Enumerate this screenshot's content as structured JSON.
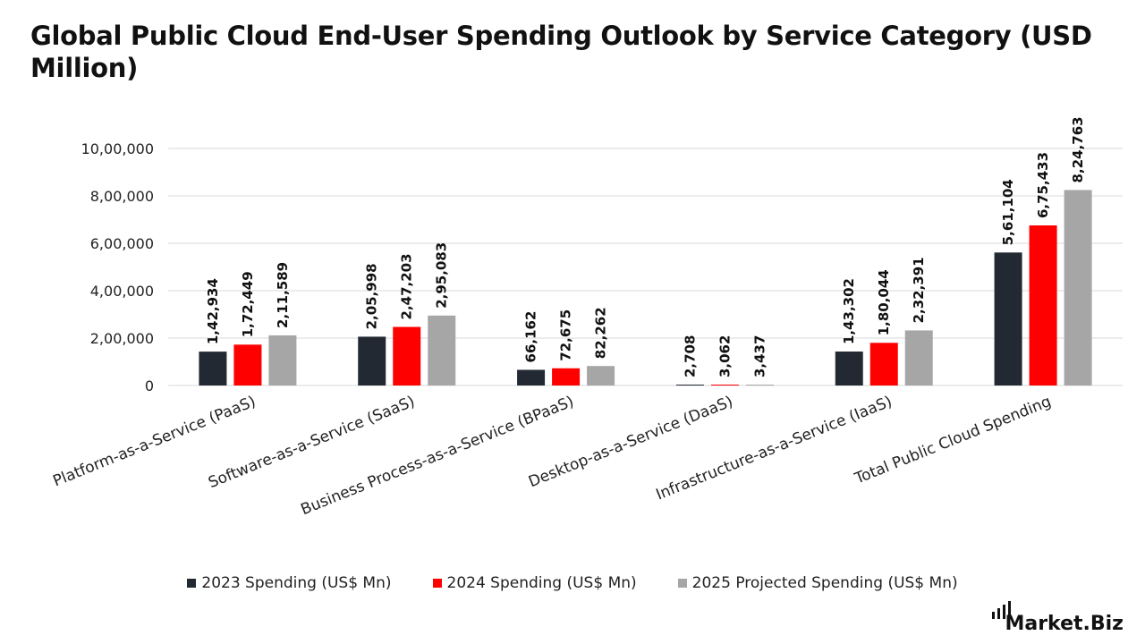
{
  "chart_data": {
    "type": "bar",
    "title": "Global Public Cloud End-User Spending Outlook by Service Category (USD Million)",
    "categories": [
      "Platform-as-a-Service (PaaS)",
      "Software-as-a-Service (SaaS)",
      "Business Process-as-a-Service (BPaaS)",
      "Desktop-as-a-Service (DaaS)",
      "Infrastructure-as-a-Service (IaaS)",
      "Total Public Cloud Spending"
    ],
    "series": [
      {
        "name": "2023 Spending (US$ Mn)",
        "color": "#222933",
        "values": [
          142934,
          205998,
          66162,
          2708,
          143302,
          561104
        ],
        "labels": [
          "1,42,934",
          "2,05,998",
          "66,162",
          "2,708",
          "1,43,302",
          "5,61,104"
        ]
      },
      {
        "name": "2024 Spending (US$ Mn)",
        "color": "#ff0000",
        "values": [
          172449,
          247203,
          72675,
          3062,
          180044,
          675433
        ],
        "labels": [
          "1,72,449",
          "2,47,203",
          "72,675",
          "3,062",
          "1,80,044",
          "6,75,433"
        ]
      },
      {
        "name": "2025 Projected Spending (US$ Mn)",
        "color": "#a6a6a6",
        "values": [
          211589,
          295083,
          82262,
          3437,
          232391,
          824763
        ],
        "labels": [
          "2,11,589",
          "2,95,083",
          "82,262",
          "3,437",
          "2,32,391",
          "8,24,763"
        ]
      }
    ],
    "ylim": [
      0,
      1000000
    ],
    "yticks": [
      0,
      200000,
      400000,
      600000,
      800000,
      1000000
    ],
    "ytick_labels": [
      "0",
      "2,00,000",
      "4,00,000",
      "6,00,000",
      "8,00,000",
      "10,00,000"
    ],
    "grid": true,
    "legend_position": "bottom"
  },
  "brand": {
    "text": "Market.Biz"
  }
}
